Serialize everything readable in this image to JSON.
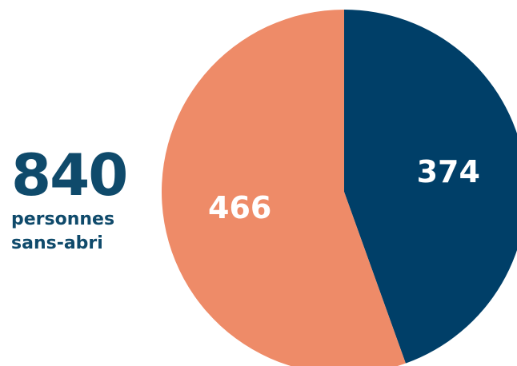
{
  "total": {
    "number": "840",
    "caption_line1": "personnes",
    "caption_line2": "sans-abri"
  },
  "colors": {
    "navy": "#003f68",
    "salmon": "#ee8b68",
    "text": "#0f4a6b"
  },
  "chart_data": {
    "type": "pie",
    "categories": [
      "",
      ""
    ],
    "values": [
      374,
      466
    ],
    "labels": [
      "374",
      "466"
    ],
    "colors": [
      "#003f68",
      "#ee8b68"
    ],
    "title": "",
    "start_angle": "12 o'clock",
    "direction": "clockwise"
  }
}
